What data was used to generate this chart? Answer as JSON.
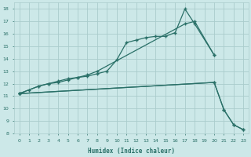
{
  "xlabel": "Humidex (Indice chaleur)",
  "bg_color": "#cce8e8",
  "grid_color": "#aacccc",
  "line_color": "#2a7068",
  "xlim": [
    -0.5,
    23.5
  ],
  "ylim": [
    8,
    18.5
  ],
  "xticks": [
    0,
    1,
    2,
    3,
    4,
    5,
    6,
    7,
    8,
    9,
    10,
    11,
    12,
    13,
    14,
    15,
    16,
    17,
    18,
    19,
    20,
    21,
    22,
    23
  ],
  "yticks": [
    8,
    9,
    10,
    11,
    12,
    13,
    14,
    15,
    16,
    17,
    18
  ],
  "line1_x": [
    0,
    1,
    2,
    3,
    4,
    5,
    6,
    7,
    8,
    9,
    10,
    11,
    12,
    13,
    14,
    15,
    16,
    17,
    18,
    20
  ],
  "line1_y": [
    11.2,
    11.5,
    11.8,
    12.0,
    12.1,
    12.3,
    12.5,
    12.6,
    12.8,
    13.0,
    13.9,
    15.3,
    15.5,
    15.7,
    15.8,
    15.8,
    16.1,
    18.0,
    16.8,
    14.3
  ],
  "line2_x": [
    0,
    2,
    3,
    4,
    5,
    6,
    7,
    8,
    17,
    18,
    20
  ],
  "line2_y": [
    11.2,
    11.8,
    12.0,
    12.2,
    12.4,
    12.5,
    12.7,
    13.0,
    16.8,
    17.0,
    14.3
  ],
  "line3_x": [
    0,
    20,
    21,
    22,
    23
  ],
  "line3_y": [
    11.2,
    12.1,
    9.9,
    8.7,
    8.3
  ],
  "line4_x": [
    0,
    20,
    21,
    22,
    23
  ],
  "line4_y": [
    11.2,
    12.1,
    9.9,
    8.7,
    8.3
  ]
}
